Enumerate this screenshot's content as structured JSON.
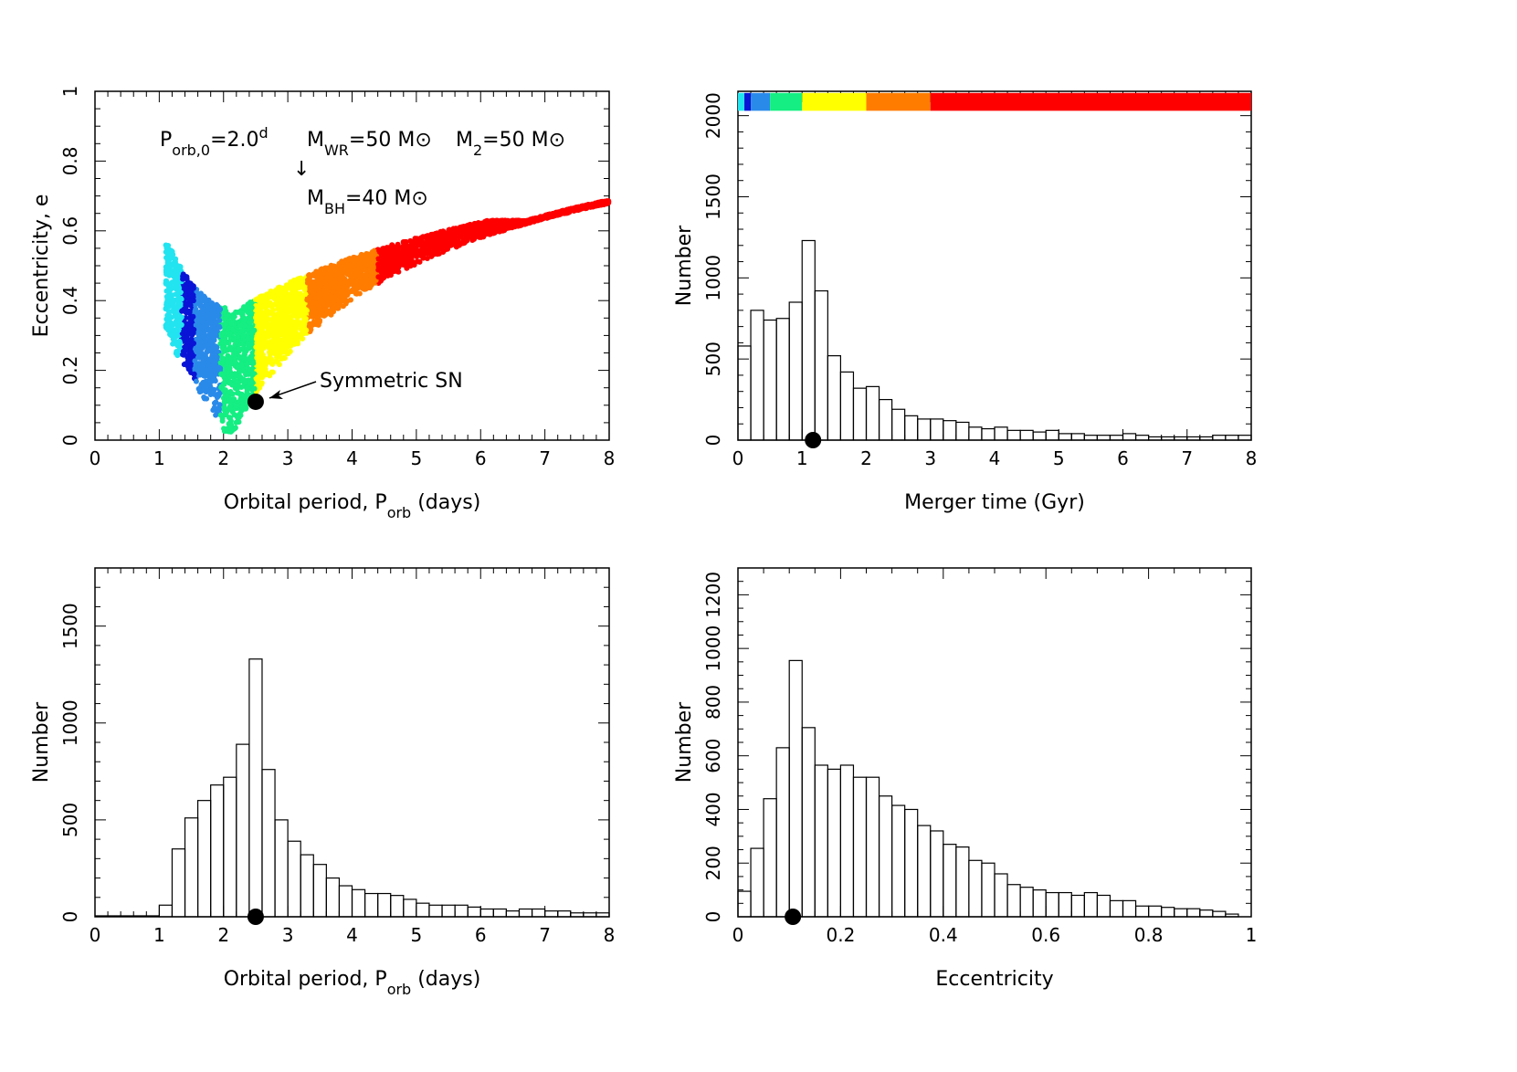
{
  "chart_data": [
    {
      "type": "scatter",
      "id": "ecc-vs-period",
      "xlabel_main": "Orbital period, P",
      "xlabel_sub": "orb",
      "xlabel_unit": "(days)",
      "ylabel": "Eccentricity, e",
      "xlim": [
        0,
        8
      ],
      "ylim": [
        0,
        1
      ],
      "xticks": [
        "0",
        "1",
        "2",
        "3",
        "4",
        "5",
        "6",
        "7",
        "8"
      ],
      "yticks": [
        "0",
        "0.2",
        "0.4",
        "0.6",
        "0.8",
        "1"
      ],
      "annotations": {
        "porb0": {
          "main": "P",
          "sub": "orb,0",
          "eq": "=2.0",
          "sup": "d"
        },
        "mwr": {
          "main": "M",
          "sub": "WR",
          "eq": "=50 M",
          "sym": "⊙"
        },
        "m2": {
          "main": "M",
          "sub": "2",
          "eq": "=50 M",
          "sym": "⊙"
        },
        "arrow": "↓",
        "mbh": {
          "main": "M",
          "sub": "BH",
          "eq": "=40 M",
          "sym": "⊙"
        },
        "sn_label": "Symmetric SN"
      },
      "symmetric_sn": {
        "x": 2.5,
        "y": 0.11
      },
      "color_bands": [
        {
          "color": "#22e4f0",
          "x": [
            1.1,
            1.35
          ]
        },
        {
          "color": "#0a14d6",
          "x": [
            1.35,
            1.55
          ]
        },
        {
          "color": "#2a8aea",
          "x": [
            1.55,
            1.95
          ]
        },
        {
          "color": "#14ee82",
          "x": [
            1.95,
            2.5
          ]
        },
        {
          "color": "#ffff00",
          "x": [
            2.5,
            3.3
          ]
        },
        {
          "color": "#ff7c00",
          "x": [
            3.3,
            4.4
          ]
        },
        {
          "color": "#ff0000",
          "x": [
            4.4,
            8.0
          ]
        }
      ]
    },
    {
      "type": "bar",
      "id": "merger-time-hist",
      "xlabel": "Merger time  (Gyr)",
      "ylabel": "Number",
      "xlim": [
        0,
        8
      ],
      "ylim": [
        0,
        2150
      ],
      "xticks": [
        "0",
        "1",
        "2",
        "3",
        "4",
        "5",
        "6",
        "7",
        "8"
      ],
      "yticks": [
        "0",
        "500",
        "1000",
        "1500",
        "2000"
      ],
      "bin_start": 0,
      "bin_width": 0.2,
      "values": [
        580,
        800,
        740,
        750,
        850,
        1230,
        920,
        520,
        420,
        320,
        330,
        250,
        190,
        150,
        130,
        130,
        120,
        110,
        80,
        70,
        80,
        60,
        60,
        50,
        60,
        40,
        40,
        30,
        30,
        30,
        40,
        30,
        20,
        20,
        20,
        20,
        20,
        30,
        30,
        30
      ],
      "symmetric_sn_x": 1.17,
      "timescale_bar": [
        {
          "color": "#22e4f0",
          "x": [
            0,
            0.1
          ]
        },
        {
          "color": "#0a14d6",
          "x": [
            0.1,
            0.2
          ]
        },
        {
          "color": "#2a8aea",
          "x": [
            0.2,
            0.5
          ]
        },
        {
          "color": "#14ee82",
          "x": [
            0.5,
            1.0
          ]
        },
        {
          "color": "#ffff00",
          "x": [
            1.0,
            2.0
          ]
        },
        {
          "color": "#ff7c00",
          "x": [
            2.0,
            3.0
          ]
        },
        {
          "color": "#ff0000",
          "x": [
            3.0,
            8.0
          ]
        }
      ]
    },
    {
      "type": "bar",
      "id": "period-hist",
      "xlabel_main": "Orbital period, P",
      "xlabel_sub": "orb",
      "xlabel_unit": "(days)",
      "ylabel": "Number",
      "xlim": [
        0,
        8
      ],
      "ylim": [
        0,
        1800
      ],
      "xticks": [
        "0",
        "1",
        "2",
        "3",
        "4",
        "5",
        "6",
        "7",
        "8"
      ],
      "yticks": [
        "0",
        "500",
        "1000",
        "1500"
      ],
      "bin_start": 1.0,
      "bin_width": 0.2,
      "values": [
        60,
        350,
        510,
        600,
        680,
        720,
        890,
        1330,
        760,
        500,
        390,
        320,
        270,
        200,
        160,
        140,
        120,
        120,
        110,
        90,
        70,
        60,
        60,
        60,
        50,
        40,
        40,
        30,
        40,
        40,
        30,
        30,
        20,
        20,
        20
      ],
      "symmetric_sn_x": 2.5
    },
    {
      "type": "bar",
      "id": "eccentricity-hist",
      "xlabel": "Eccentricity",
      "ylabel": "Number",
      "xlim": [
        0,
        1
      ],
      "ylim": [
        0,
        1300
      ],
      "xticks": [
        "0",
        "0.2",
        "0.4",
        "0.6",
        "0.8",
        "1"
      ],
      "yticks": [
        "0",
        "200",
        "400",
        "600",
        "800",
        "1000",
        "1200"
      ],
      "bin_start": 0,
      "bin_width": 0.025,
      "values": [
        95,
        255,
        440,
        630,
        955,
        705,
        565,
        550,
        565,
        520,
        520,
        450,
        415,
        400,
        340,
        320,
        270,
        260,
        210,
        200,
        160,
        120,
        110,
        100,
        90,
        90,
        80,
        90,
        80,
        60,
        60,
        40,
        40,
        35,
        30,
        30,
        25,
        20,
        10
      ],
      "symmetric_sn_x": 0.107
    }
  ]
}
